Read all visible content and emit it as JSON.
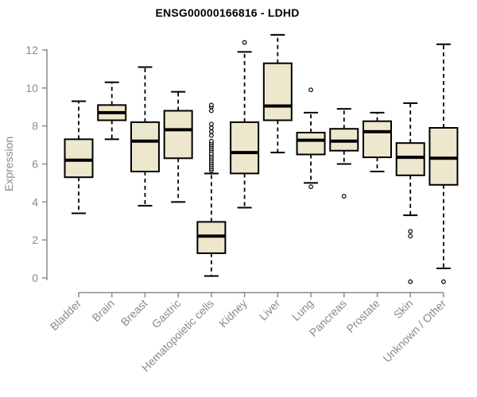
{
  "chart_data": {
    "type": "boxplot",
    "title": "ENSG00000166816 - LDHD",
    "xlabel": "",
    "ylabel": "Expression",
    "ylim": [
      0,
      12
    ],
    "yticks": [
      0,
      2,
      4,
      6,
      8,
      10,
      12
    ],
    "grid": false,
    "legend": null,
    "colors": {
      "box_fill": "#EDE8CD",
      "box_stroke": "#000000",
      "median": "#000000",
      "whisker": "#000000",
      "outlier": "#000000",
      "axis": "#8a8a8a",
      "title": "#000000",
      "background": "#ffffff"
    },
    "categories": [
      "Bladder",
      "Brain",
      "Breast",
      "Gastric",
      "Hematopoietic cells",
      "Kidney",
      "Liver",
      "Lung",
      "Pancreas",
      "Prostate",
      "Skin",
      "Unknown / Other"
    ],
    "series": [
      {
        "name": "Bladder",
        "whisker_low": 3.4,
        "q1": 5.3,
        "median": 6.2,
        "q3": 7.3,
        "whisker_high": 9.3,
        "outliers": []
      },
      {
        "name": "Brain",
        "whisker_low": 7.3,
        "q1": 8.3,
        "median": 8.7,
        "q3": 9.1,
        "whisker_high": 10.3,
        "outliers": []
      },
      {
        "name": "Breast",
        "whisker_low": 3.8,
        "q1": 5.6,
        "median": 7.2,
        "q3": 8.2,
        "whisker_high": 11.1,
        "outliers": []
      },
      {
        "name": "Gastric",
        "whisker_low": 4.0,
        "q1": 6.3,
        "median": 7.8,
        "q3": 8.8,
        "whisker_high": 9.8,
        "outliers": []
      },
      {
        "name": "Hematopoietic cells",
        "whisker_low": 0.1,
        "q1": 1.3,
        "median": 2.2,
        "q3": 2.95,
        "whisker_high": 5.5,
        "outliers": [
          5.65,
          5.75,
          5.85,
          5.95,
          6.05,
          6.15,
          6.25,
          6.35,
          6.45,
          6.55,
          6.7,
          6.8,
          6.9,
          7.0,
          7.1,
          7.2,
          7.5,
          7.7,
          7.9,
          8.1,
          8.8,
          9.0,
          9.1
        ]
      },
      {
        "name": "Kidney",
        "whisker_low": 3.7,
        "q1": 5.5,
        "median": 6.6,
        "q3": 8.2,
        "whisker_high": 11.9,
        "outliers": [
          12.4
        ]
      },
      {
        "name": "Liver",
        "whisker_low": 6.6,
        "q1": 8.3,
        "median": 9.05,
        "q3": 11.3,
        "whisker_high": 12.8,
        "outliers": []
      },
      {
        "name": "Lung",
        "whisker_low": 5.0,
        "q1": 6.5,
        "median": 7.25,
        "q3": 7.65,
        "whisker_high": 8.7,
        "outliers": [
          9.9,
          4.8
        ]
      },
      {
        "name": "Pancreas",
        "whisker_low": 6.0,
        "q1": 6.7,
        "median": 7.2,
        "q3": 7.85,
        "whisker_high": 8.9,
        "outliers": [
          4.3
        ]
      },
      {
        "name": "Prostate",
        "whisker_low": 5.6,
        "q1": 6.35,
        "median": 7.7,
        "q3": 8.25,
        "whisker_high": 8.7,
        "outliers": []
      },
      {
        "name": "Skin",
        "whisker_low": 3.3,
        "q1": 5.4,
        "median": 6.35,
        "q3": 7.1,
        "whisker_high": 9.2,
        "outliers": [
          2.45,
          2.2,
          -0.2
        ]
      },
      {
        "name": "Unknown / Other",
        "whisker_low": 0.5,
        "q1": 4.9,
        "median": 6.3,
        "q3": 7.9,
        "whisker_high": 12.3,
        "outliers": [
          -0.2
        ]
      }
    ]
  }
}
